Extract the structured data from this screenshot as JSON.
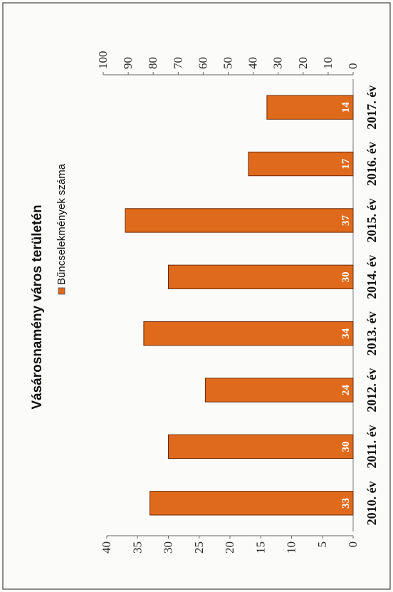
{
  "chart_data": {
    "type": "bar",
    "orientation": "horizontal",
    "title": "Vásárosnamény város területén",
    "legend": {
      "entries": [
        "Bűncselekmények száma"
      ],
      "placement": "top"
    },
    "categories": [
      "2010. év",
      "2011. év",
      "2012. év",
      "2013. év",
      "2014. év",
      "2015. év",
      "2016. év",
      "2017. év"
    ],
    "series": [
      {
        "name": "Bűncselekmények száma",
        "values": [
          33,
          30,
          24,
          34,
          30,
          37,
          17,
          14
        ],
        "color": "#e06a1c"
      }
    ],
    "data_labels": [
      "33",
      "30",
      "24",
      "34",
      "30",
      "37",
      "17",
      "14"
    ],
    "primary_axis": {
      "range": [
        0,
        40
      ],
      "ticks": [
        "0",
        "5",
        "10",
        "15",
        "20",
        "25",
        "30",
        "35",
        "40"
      ]
    },
    "secondary_axis": {
      "range": [
        0,
        100
      ],
      "ticks": [
        "0",
        "10",
        "20",
        "30",
        "40",
        "50",
        "60",
        "70",
        "80",
        "90",
        "100"
      ]
    },
    "grid": false
  }
}
